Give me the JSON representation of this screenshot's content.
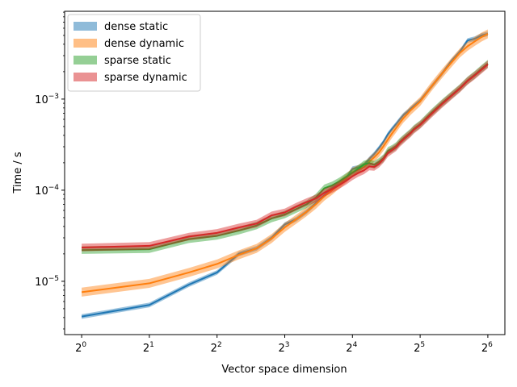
{
  "chart_data": {
    "type": "line",
    "title": "",
    "xlabel": "Vector space dimension",
    "ylabel": "Time / s",
    "x_scale": "log2",
    "y_scale": "log10",
    "xlim": [
      0.84,
      76.2
    ],
    "ylim": [
      2.6e-06,
      0.0092
    ],
    "grid": false,
    "legend_position": "top-left",
    "x_ticks": [
      {
        "value": 1,
        "base": "2",
        "exp": "0"
      },
      {
        "value": 2,
        "base": "2",
        "exp": "1"
      },
      {
        "value": 4,
        "base": "2",
        "exp": "2"
      },
      {
        "value": 8,
        "base": "2",
        "exp": "3"
      },
      {
        "value": 16,
        "base": "2",
        "exp": "4"
      },
      {
        "value": 32,
        "base": "2",
        "exp": "5"
      },
      {
        "value": 64,
        "base": "2",
        "exp": "6"
      }
    ],
    "y_ticks": [
      {
        "value": 1e-05,
        "base": "10",
        "exp": "−5"
      },
      {
        "value": 0.0001,
        "base": "10",
        "exp": "−4"
      },
      {
        "value": 0.001,
        "base": "10",
        "exp": "−3"
      }
    ],
    "x": [
      1,
      2,
      3,
      4,
      5,
      6,
      7,
      8,
      9,
      10,
      11,
      12,
      13,
      14,
      15,
      16,
      17,
      18,
      19,
      20,
      21,
      22,
      23,
      24,
      25,
      26,
      27,
      28,
      29,
      30,
      32,
      36,
      40,
      44,
      48,
      52,
      56,
      60,
      64
    ],
    "series": [
      {
        "name": "dense static",
        "color": "#1f77b4",
        "legend_color": "#8fbbd9",
        "band": 0.06,
        "values": [
          4.1e-06,
          5.5e-06,
          9.2e-06,
          1.25e-05,
          2e-05,
          2.3e-05,
          3e-05,
          4.2e-05,
          4.8e-05,
          5.8e-05,
          7.2e-05,
          8.8e-05,
          0.000105,
          0.000118,
          0.000135,
          0.000172,
          0.000178,
          0.000188,
          0.00022,
          0.00025,
          0.00029,
          0.00034,
          0.00041,
          0.00047,
          0.00053,
          0.0006,
          0.00067,
          0.00072,
          0.00078,
          0.00084,
          0.00096,
          0.00138,
          0.0019,
          0.0026,
          0.0033,
          0.0044,
          0.0046,
          0.005,
          0.0052
        ]
      },
      {
        "name": "dense dynamic",
        "color": "#ff7f0e",
        "legend_color": "#ffbf86",
        "band": 0.12,
        "values": [
          7.6e-06,
          9.5e-06,
          1.25e-05,
          1.55e-05,
          1.95e-05,
          2.3e-05,
          2.95e-05,
          3.9e-05,
          4.8e-05,
          5.8e-05,
          7e-05,
          8.6e-05,
          0.0001,
          0.000117,
          0.000135,
          0.000158,
          0.000168,
          0.00018,
          0.000205,
          0.00023,
          0.00026,
          0.000305,
          0.00036,
          0.00042,
          0.00048,
          0.00055,
          0.00062,
          0.00068,
          0.00075,
          0.00081,
          0.00094,
          0.00138,
          0.0019,
          0.0025,
          0.0032,
          0.0038,
          0.0043,
          0.0048,
          0.0052
        ]
      },
      {
        "name": "sparse static",
        "color": "#2ca02c",
        "legend_color": "#95cf95",
        "band": 0.1,
        "values": [
          2.2e-05,
          2.25e-05,
          2.9e-05,
          3.15e-05,
          3.6e-05,
          4.1e-05,
          4.9e-05,
          5.4e-05,
          6.2e-05,
          7e-05,
          8.3e-05,
          0.000105,
          0.000113,
          0.000125,
          0.00014,
          0.000155,
          0.000172,
          0.000192,
          0.000198,
          0.00019,
          0.000205,
          0.000225,
          0.00027,
          0.000285,
          0.000305,
          0.00034,
          0.00037,
          0.0004,
          0.00043,
          0.00047,
          0.00053,
          0.00071,
          0.0009,
          0.0011,
          0.00132,
          0.0016,
          0.00185,
          0.00215,
          0.00245
        ]
      },
      {
        "name": "sparse dynamic",
        "color": "#d62728",
        "legend_color": "#ea9293",
        "band": 0.1,
        "values": [
          2.35e-05,
          2.45e-05,
          3.1e-05,
          3.4e-05,
          3.9e-05,
          4.3e-05,
          5.3e-05,
          5.7e-05,
          6.6e-05,
          7.4e-05,
          8.1e-05,
          9.4e-05,
          0.000103,
          0.000114,
          0.000127,
          0.000142,
          0.000155,
          0.000165,
          0.000182,
          0.00018,
          0.000195,
          0.00022,
          0.000255,
          0.000275,
          0.000295,
          0.00033,
          0.00036,
          0.00039,
          0.00042,
          0.00046,
          0.00052,
          0.00069,
          0.00088,
          0.00108,
          0.0013,
          0.00158,
          0.00182,
          0.0021,
          0.0024
        ]
      }
    ]
  }
}
